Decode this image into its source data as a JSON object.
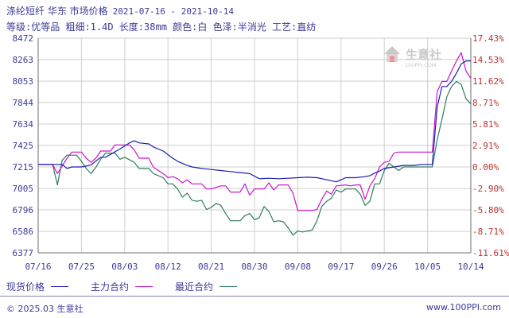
{
  "header": {
    "title": "涤纶短纤 华东 市场价格",
    "date_range": "2021-07-16 - 2021-10-14",
    "specs": "等级:优等品 粗细:1.4D 长度:38mm 颜色:白 色泽:半消光 工艺:直纺"
  },
  "watermark": {
    "text": "生意社",
    "url": "100PPI.COM"
  },
  "colors": {
    "spot": "#1c1cb4",
    "main_contract": "#cc16cc",
    "recent_contract": "#2e7d5e",
    "left_axis": "#3a3a9a",
    "right_axis": "#c03030",
    "grid": "#cfcfcf",
    "axis_line": "#6f6f6f"
  },
  "legend": [
    {
      "label": "现货价格",
      "color": "#1c1cb4"
    },
    {
      "label": "主力合约",
      "color": "#cc16cc"
    },
    {
      "label": "最近合约",
      "color": "#2e7d5e"
    }
  ],
  "footer": {
    "copyright": "© 2025.03 生意社",
    "site": "www.100PPI.com"
  },
  "chart_data": {
    "type": "line",
    "title": "涤纶短纤 华东 市场价格",
    "x_ticks": [
      "07/16",
      "07/25",
      "08/03",
      "08/12",
      "08/21",
      "08/30",
      "09/08",
      "09/17",
      "09/26",
      "10/05",
      "10/14"
    ],
    "x_tick_days": [
      0,
      9,
      18,
      27,
      36,
      45,
      54,
      63,
      72,
      81,
      90
    ],
    "y_ticks": [
      6377,
      6586,
      6796,
      7005,
      7215,
      7425,
      7634,
      7844,
      8053,
      8263,
      8472
    ],
    "y_right_ticks": [
      "-11.61%",
      "-8.71%",
      "-5.80%",
      "-2.90%",
      "0.00%",
      "2.91%",
      "5.81%",
      "8.71%",
      "11.62%",
      "14.53%",
      "17.43%"
    ],
    "ylim": [
      6377,
      8472
    ],
    "xlim": [
      0,
      90
    ],
    "grid": true,
    "legend_position": "bottom",
    "series": [
      {
        "name": "现货价格",
        "color": "#1c1cb4",
        "points": [
          [
            0,
            7240
          ],
          [
            5,
            7240
          ],
          [
            6,
            7200
          ],
          [
            7,
            7215
          ],
          [
            9,
            7215
          ],
          [
            11,
            7235
          ],
          [
            13,
            7310
          ],
          [
            14,
            7310
          ],
          [
            17,
            7390
          ],
          [
            18,
            7420
          ],
          [
            19,
            7450
          ],
          [
            20,
            7470
          ],
          [
            21,
            7450
          ],
          [
            23,
            7440
          ],
          [
            24,
            7410
          ],
          [
            26,
            7370
          ],
          [
            28,
            7300
          ],
          [
            29,
            7270
          ],
          [
            31,
            7230
          ],
          [
            32,
            7215
          ],
          [
            34,
            7200
          ],
          [
            36,
            7190
          ],
          [
            38,
            7180
          ],
          [
            40,
            7170
          ],
          [
            42,
            7160
          ],
          [
            44,
            7150
          ],
          [
            46,
            7100
          ],
          [
            48,
            7105
          ],
          [
            50,
            7100
          ],
          [
            52,
            7105
          ],
          [
            54,
            7110
          ],
          [
            56,
            7115
          ],
          [
            58,
            7110
          ],
          [
            60,
            7090
          ],
          [
            62,
            7070
          ],
          [
            63,
            7090
          ],
          [
            64,
            7110
          ],
          [
            66,
            7110
          ],
          [
            68,
            7120
          ],
          [
            69,
            7130
          ],
          [
            70,
            7155
          ],
          [
            71,
            7175
          ],
          [
            72,
            7200
          ],
          [
            74,
            7215
          ],
          [
            76,
            7230
          ],
          [
            78,
            7230
          ],
          [
            80,
            7240
          ],
          [
            82,
            7240
          ],
          [
            83,
            7800
          ],
          [
            84,
            8000
          ],
          [
            85,
            8000
          ],
          [
            86,
            8050
          ],
          [
            87,
            8130
          ],
          [
            88,
            8220
          ],
          [
            89,
            8250
          ],
          [
            90,
            8250
          ]
        ]
      },
      {
        "name": "主力合约",
        "color": "#cc16cc",
        "points": [
          [
            0,
            7240
          ],
          [
            3,
            7240
          ],
          [
            4,
            7150
          ],
          [
            6,
            7300
          ],
          [
            7,
            7360
          ],
          [
            9,
            7360
          ],
          [
            10,
            7300
          ],
          [
            11,
            7260
          ],
          [
            12,
            7300
          ],
          [
            13,
            7370
          ],
          [
            15,
            7370
          ],
          [
            16,
            7430
          ],
          [
            18,
            7430
          ],
          [
            19,
            7430
          ],
          [
            20,
            7380
          ],
          [
            21,
            7300
          ],
          [
            23,
            7300
          ],
          [
            24,
            7210
          ],
          [
            26,
            7150
          ],
          [
            27,
            7110
          ],
          [
            28,
            7120
          ],
          [
            29,
            7100
          ],
          [
            30,
            7060
          ],
          [
            31,
            7090
          ],
          [
            32,
            7050
          ],
          [
            34,
            7050
          ],
          [
            35,
            7000
          ],
          [
            36,
            7000
          ],
          [
            38,
            7030
          ],
          [
            39,
            7030
          ],
          [
            40,
            6970
          ],
          [
            42,
            6970
          ],
          [
            43,
            7050
          ],
          [
            44,
            6940
          ],
          [
            45,
            7000
          ],
          [
            47,
            7000
          ],
          [
            48,
            7060
          ],
          [
            49,
            6990
          ],
          [
            50,
            7040
          ],
          [
            52,
            7040
          ],
          [
            53,
            6960
          ],
          [
            54,
            6790
          ],
          [
            56,
            6790
          ],
          [
            57,
            6790
          ],
          [
            58,
            6800
          ],
          [
            59,
            6900
          ],
          [
            60,
            6980
          ],
          [
            61,
            6950
          ],
          [
            62,
            7030
          ],
          [
            64,
            7040
          ],
          [
            65,
            7030
          ],
          [
            66,
            7040
          ],
          [
            67,
            7040
          ],
          [
            68,
            6900
          ],
          [
            69,
            7030
          ],
          [
            70,
            7100
          ],
          [
            71,
            7215
          ],
          [
            72,
            7260
          ],
          [
            73,
            7270
          ],
          [
            74,
            7350
          ],
          [
            75,
            7360
          ],
          [
            76,
            7360
          ],
          [
            80,
            7360
          ],
          [
            81,
            7360
          ],
          [
            82,
            7360
          ],
          [
            83,
            7950
          ],
          [
            84,
            8050
          ],
          [
            85,
            8050
          ],
          [
            86,
            8150
          ],
          [
            87,
            8250
          ],
          [
            88,
            8330
          ],
          [
            89,
            8150
          ],
          [
            90,
            8080
          ]
        ]
      },
      {
        "name": "最近合约",
        "color": "#2e7d5e",
        "points": [
          [
            0,
            7240
          ],
          [
            3,
            7240
          ],
          [
            4,
            7040
          ],
          [
            5,
            7280
          ],
          [
            6,
            7330
          ],
          [
            8,
            7330
          ],
          [
            9,
            7270
          ],
          [
            10,
            7200
          ],
          [
            11,
            7150
          ],
          [
            12,
            7210
          ],
          [
            13,
            7290
          ],
          [
            14,
            7350
          ],
          [
            16,
            7350
          ],
          [
            17,
            7290
          ],
          [
            18,
            7310
          ],
          [
            20,
            7260
          ],
          [
            21,
            7200
          ],
          [
            23,
            7200
          ],
          [
            24,
            7150
          ],
          [
            26,
            7110
          ],
          [
            27,
            7050
          ],
          [
            28,
            7050
          ],
          [
            29,
            7000
          ],
          [
            30,
            6920
          ],
          [
            31,
            6960
          ],
          [
            32,
            6890
          ],
          [
            33,
            6880
          ],
          [
            34,
            6890
          ],
          [
            35,
            6800
          ],
          [
            36,
            6820
          ],
          [
            37,
            6860
          ],
          [
            38,
            6840
          ],
          [
            39,
            6760
          ],
          [
            40,
            6690
          ],
          [
            41,
            6690
          ],
          [
            42,
            6690
          ],
          [
            43,
            6740
          ],
          [
            44,
            6760
          ],
          [
            45,
            6700
          ],
          [
            46,
            6720
          ],
          [
            47,
            6830
          ],
          [
            48,
            6780
          ],
          [
            49,
            6680
          ],
          [
            50,
            6690
          ],
          [
            51,
            6680
          ],
          [
            52,
            6620
          ],
          [
            53,
            6550
          ],
          [
            54,
            6590
          ],
          [
            55,
            6580
          ],
          [
            56,
            6590
          ],
          [
            57,
            6600
          ],
          [
            58,
            6690
          ],
          [
            59,
            6830
          ],
          [
            60,
            6880
          ],
          [
            61,
            6910
          ],
          [
            62,
            6990
          ],
          [
            63,
            6970
          ],
          [
            64,
            7000
          ],
          [
            66,
            7000
          ],
          [
            67,
            6950
          ],
          [
            68,
            6840
          ],
          [
            69,
            6880
          ],
          [
            70,
            7050
          ],
          [
            71,
            7050
          ],
          [
            72,
            7180
          ],
          [
            73,
            7250
          ],
          [
            74,
            7215
          ],
          [
            75,
            7180
          ],
          [
            76,
            7215
          ],
          [
            80,
            7215
          ],
          [
            81,
            7215
          ],
          [
            82,
            7215
          ],
          [
            83,
            7480
          ],
          [
            84,
            7680
          ],
          [
            85,
            7900
          ],
          [
            86,
            8000
          ],
          [
            87,
            8050
          ],
          [
            88,
            8020
          ],
          [
            89,
            7880
          ],
          [
            90,
            7830
          ]
        ]
      }
    ]
  }
}
